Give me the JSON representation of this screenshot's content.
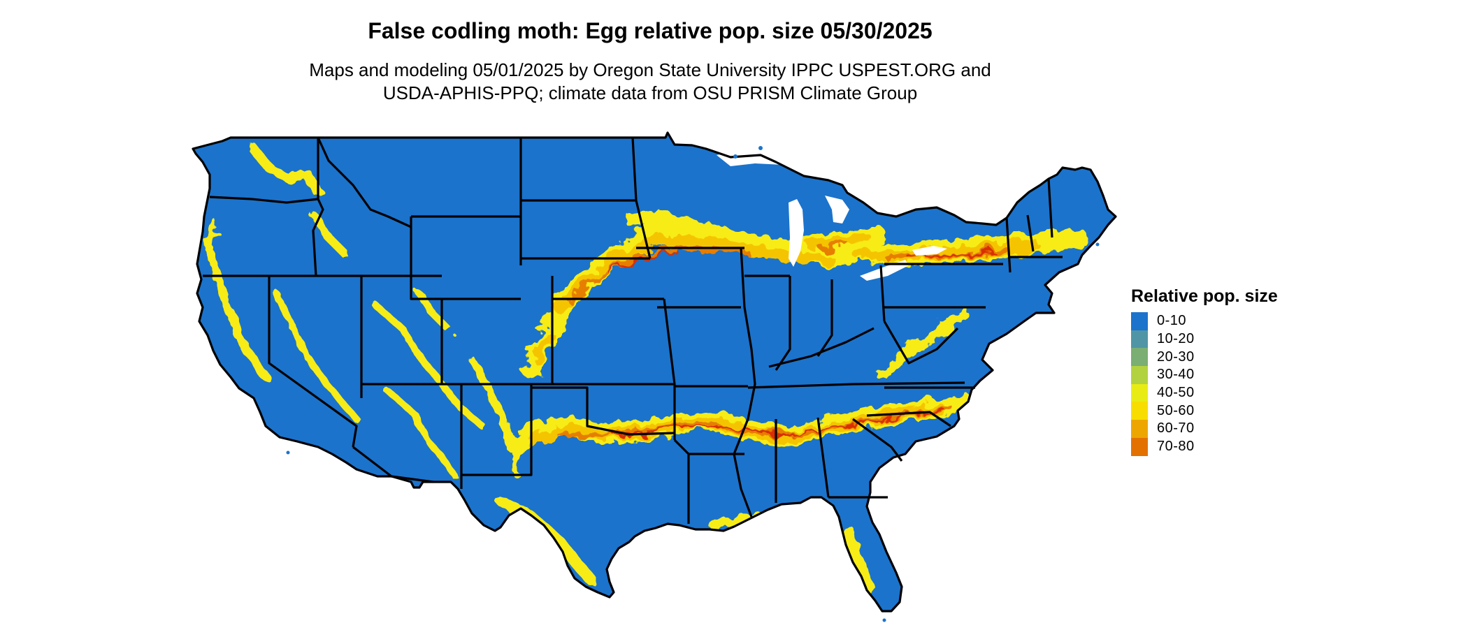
{
  "header": {
    "title": "False codling moth: Egg relative pop. size 05/30/2025",
    "subtitle_line1": "Maps and modeling 05/01/2025 by Oregon State University IPPC USPEST.ORG and",
    "subtitle_line2": "USDA-APHIS-PPQ; climate data from OSU PRISM Climate Group"
  },
  "map": {
    "region": "contiguous-united-states",
    "base_color": "#1b73cc",
    "border_color": "#000000",
    "band_colors": [
      "#f7ec12",
      "#f5c400",
      "#e67e00",
      "#d92e00"
    ]
  },
  "legend": {
    "title": "Relative pop. size",
    "items": [
      {
        "label": "0-10",
        "color": "#1b73cc"
      },
      {
        "label": "10-20",
        "color": "#4f95a6"
      },
      {
        "label": "20-30",
        "color": "#7aae72"
      },
      {
        "label": "30-40",
        "color": "#b3d23f"
      },
      {
        "label": "40-50",
        "color": "#e9ec14"
      },
      {
        "label": "50-60",
        "color": "#f7de00"
      },
      {
        "label": "60-70",
        "color": "#eda600"
      },
      {
        "label": "70-80",
        "color": "#e37100"
      }
    ]
  }
}
